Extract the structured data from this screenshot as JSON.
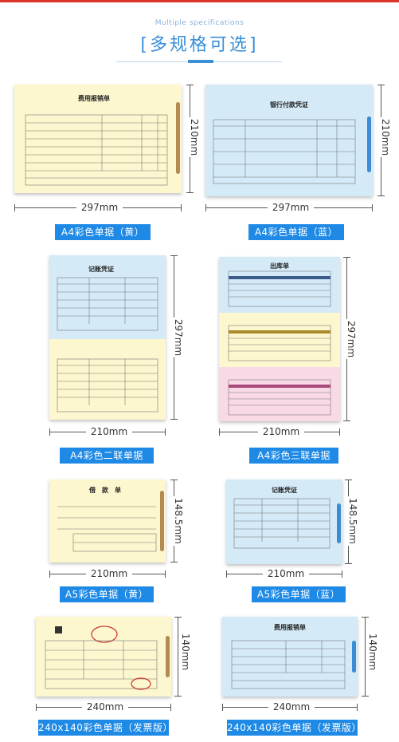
{
  "header": {
    "subtitle": "Multiple specifications",
    "title": "[多规格可选]"
  },
  "colors": {
    "accent": "#1e8ae6",
    "yellow_paper": "#fdf7cf",
    "blue_paper": "#d4eaf7",
    "pink_paper": "#f9d9e6"
  },
  "items": [
    {
      "width_label": "297mm",
      "height_label": "210mm",
      "caption": "A4彩色单据（黄）",
      "form_title": "费用报销单"
    },
    {
      "width_label": "297mm",
      "height_label": "210mm",
      "caption": "A4彩色单据（蓝）",
      "form_title": "银行付款凭证"
    },
    {
      "width_label": "210mm",
      "height_label": "297mm",
      "caption": "A4彩色二联单据",
      "form_title": "记账凭证"
    },
    {
      "width_label": "210mm",
      "height_label": "297mm",
      "caption": "A4彩色三联单据",
      "form_title": "出库单"
    },
    {
      "width_label": "210mm",
      "height_label": "148.5mm",
      "caption": "A5彩色单据（黄）",
      "form_title": "借　款　单"
    },
    {
      "width_label": "210mm",
      "height_label": "148.5mm",
      "caption": "A5彩色单据（蓝）",
      "form_title": "记账凭证"
    },
    {
      "width_label": "240mm",
      "height_label": "140mm",
      "caption": "240x140彩色单据（发票版）",
      "form_title": ""
    },
    {
      "width_label": "240mm",
      "height_label": "140mm",
      "caption": "240x140彩色单据（发票版）",
      "form_title": "费用报销单"
    }
  ]
}
